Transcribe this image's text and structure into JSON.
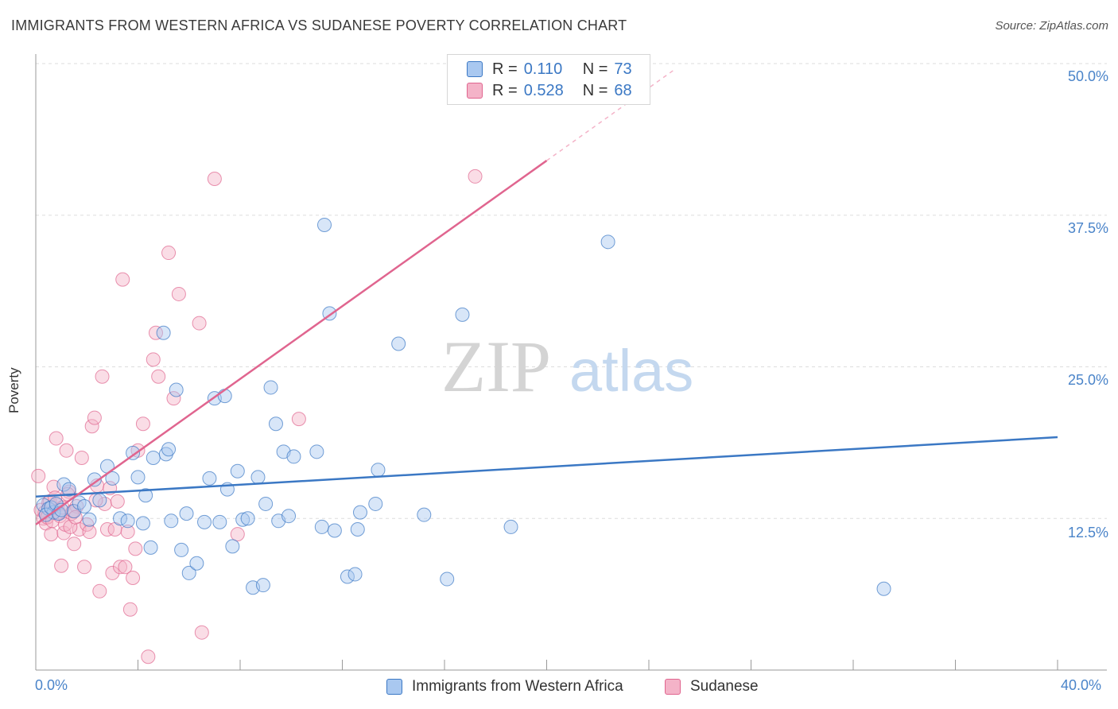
{
  "title": "IMMIGRANTS FROM WESTERN AFRICA VS SUDANESE POVERTY CORRELATION CHART",
  "source": "Source: ZipAtlas.com",
  "watermark": {
    "zip": "ZIP",
    "atlas": "atlas"
  },
  "legend_top": [
    {
      "r_label": "R =",
      "r_value": "0.110",
      "n_label": "N =",
      "n_value": "73"
    },
    {
      "r_label": "R =",
      "r_value": "0.528",
      "n_label": "N =",
      "n_value": "68"
    }
  ],
  "legend_bottom": [
    "Immigrants from Western Africa",
    "Sudanese"
  ],
  "colors": {
    "blue": "#3b78c4",
    "blue_fill": "#a9c8f0",
    "pink": "#e0658f",
    "pink_fill": "#f4b3c8",
    "grid": "#dddddd",
    "tick": "#4a84c9"
  },
  "chart_data": {
    "type": "scatter",
    "title": "IMMIGRANTS FROM WESTERN AFRICA VS SUDANESE POVERTY CORRELATION CHART",
    "xlabel": "",
    "ylabel": "Poverty",
    "xlim": [
      0,
      40
    ],
    "ylim": [
      0,
      50
    ],
    "x_tick_labels": [
      "0.0%",
      "40.0%"
    ],
    "y_ticks": [
      12.5,
      25.0,
      37.5,
      50.0
    ],
    "y_tick_labels": [
      "12.5%",
      "25.0%",
      "37.5%",
      "50.0%"
    ],
    "series": [
      {
        "name": "Immigrants from Western Africa",
        "color": "#3b78c4",
        "r": 0.11,
        "n": 73,
        "trend": {
          "x": [
            0,
            40
          ],
          "y": [
            14.3,
            19.2
          ]
        },
        "points": [
          [
            0.3,
            13.6
          ],
          [
            0.5,
            13.3
          ],
          [
            0.7,
            13.0
          ],
          [
            0.4,
            12.8
          ],
          [
            0.6,
            13.4
          ],
          [
            0.8,
            13.7
          ],
          [
            0.9,
            12.9
          ],
          [
            1.0,
            13.2
          ],
          [
            1.1,
            15.3
          ],
          [
            1.3,
            14.9
          ],
          [
            1.5,
            13.1
          ],
          [
            1.7,
            13.8
          ],
          [
            1.9,
            13.5
          ],
          [
            2.1,
            12.4
          ],
          [
            2.3,
            15.7
          ],
          [
            2.5,
            14.0
          ],
          [
            2.8,
            16.8
          ],
          [
            3.0,
            15.8
          ],
          [
            3.3,
            12.5
          ],
          [
            3.6,
            12.3
          ],
          [
            3.8,
            17.9
          ],
          [
            4.0,
            15.9
          ],
          [
            4.3,
            14.4
          ],
          [
            4.6,
            17.5
          ],
          [
            4.2,
            12.1
          ],
          [
            4.5,
            10.1
          ],
          [
            5.0,
            27.8
          ],
          [
            5.1,
            17.8
          ],
          [
            5.3,
            12.3
          ],
          [
            5.7,
            9.9
          ],
          [
            5.5,
            23.1
          ],
          [
            5.9,
            12.9
          ],
          [
            6.0,
            8.0
          ],
          [
            6.3,
            8.8
          ],
          [
            6.6,
            12.2
          ],
          [
            6.8,
            15.8
          ],
          [
            7.0,
            22.4
          ],
          [
            7.4,
            22.6
          ],
          [
            7.2,
            12.2
          ],
          [
            7.5,
            14.9
          ],
          [
            7.7,
            10.2
          ],
          [
            7.9,
            16.4
          ],
          [
            8.1,
            12.4
          ],
          [
            8.3,
            12.5
          ],
          [
            8.5,
            6.8
          ],
          [
            8.7,
            15.9
          ],
          [
            8.9,
            7.0
          ],
          [
            9.0,
            13.7
          ],
          [
            9.2,
            23.3
          ],
          [
            9.4,
            20.3
          ],
          [
            9.5,
            12.3
          ],
          [
            9.7,
            18.0
          ],
          [
            9.9,
            12.7
          ],
          [
            10.1,
            17.6
          ],
          [
            11.0,
            18.0
          ],
          [
            11.2,
            11.8
          ],
          [
            11.3,
            36.7
          ],
          [
            11.5,
            29.4
          ],
          [
            11.7,
            11.5
          ],
          [
            12.2,
            7.7
          ],
          [
            12.5,
            7.9
          ],
          [
            12.7,
            13.0
          ],
          [
            13.3,
            13.7
          ],
          [
            12.6,
            11.6
          ],
          [
            13.4,
            16.5
          ],
          [
            14.2,
            26.9
          ],
          [
            15.2,
            12.8
          ],
          [
            16.1,
            7.5
          ],
          [
            16.7,
            29.3
          ],
          [
            18.6,
            11.8
          ],
          [
            22.4,
            35.3
          ],
          [
            33.2,
            6.7
          ],
          [
            5.2,
            18.2
          ]
        ]
      },
      {
        "name": "Sudanese",
        "color": "#e0658f",
        "r": 0.528,
        "n": 68,
        "trend": {
          "x": [
            0,
            20
          ],
          "y": [
            12.0,
            42.0
          ]
        },
        "trend_dashed": {
          "x": [
            20,
            25
          ],
          "y": [
            42.0,
            49.5
          ]
        },
        "points": [
          [
            0.1,
            16.0
          ],
          [
            0.2,
            13.2
          ],
          [
            0.3,
            12.5
          ],
          [
            0.4,
            12.1
          ],
          [
            0.5,
            13.8
          ],
          [
            0.6,
            11.2
          ],
          [
            0.7,
            15.1
          ],
          [
            0.8,
            19.1
          ],
          [
            0.9,
            13.0
          ],
          [
            0.85,
            13.6
          ],
          [
            1.0,
            8.6
          ],
          [
            1.1,
            11.3
          ],
          [
            1.2,
            18.1
          ],
          [
            1.3,
            14.7
          ],
          [
            1.4,
            12.9
          ],
          [
            1.5,
            10.4
          ],
          [
            1.6,
            13.5
          ],
          [
            1.7,
            11.6
          ],
          [
            1.8,
            17.5
          ],
          [
            1.9,
            8.5
          ],
          [
            2.0,
            12.0
          ],
          [
            2.1,
            11.4
          ],
          [
            2.2,
            20.1
          ],
          [
            2.3,
            20.8
          ],
          [
            2.4,
            15.2
          ],
          [
            2.5,
            6.5
          ],
          [
            2.6,
            24.2
          ],
          [
            2.7,
            13.7
          ],
          [
            2.8,
            11.6
          ],
          [
            2.9,
            15.0
          ],
          [
            3.0,
            8.0
          ],
          [
            3.1,
            11.6
          ],
          [
            3.2,
            13.9
          ],
          [
            3.3,
            8.5
          ],
          [
            3.4,
            32.2
          ],
          [
            3.5,
            8.5
          ],
          [
            3.6,
            11.4
          ],
          [
            3.7,
            5.0
          ],
          [
            3.8,
            7.6
          ],
          [
            3.9,
            10.0
          ],
          [
            4.0,
            18.1
          ],
          [
            4.2,
            20.3
          ],
          [
            4.4,
            1.1
          ],
          [
            4.6,
            25.6
          ],
          [
            4.7,
            27.8
          ],
          [
            4.8,
            24.2
          ],
          [
            5.2,
            34.4
          ],
          [
            5.4,
            22.4
          ],
          [
            5.6,
            31.0
          ],
          [
            6.4,
            28.6
          ],
          [
            6.5,
            3.1
          ],
          [
            7.0,
            40.5
          ],
          [
            7.9,
            11.2
          ],
          [
            10.3,
            20.7
          ],
          [
            17.2,
            40.7
          ],
          [
            0.35,
            13.0
          ],
          [
            0.45,
            12.6
          ],
          [
            0.55,
            13.9
          ],
          [
            0.65,
            12.3
          ],
          [
            0.75,
            14.2
          ],
          [
            0.95,
            12.7
          ],
          [
            1.05,
            13.4
          ],
          [
            1.15,
            12.0
          ],
          [
            1.25,
            14.5
          ],
          [
            1.35,
            11.8
          ],
          [
            1.45,
            13.1
          ],
          [
            1.55,
            12.6
          ],
          [
            2.35,
            14.0
          ]
        ]
      }
    ]
  }
}
